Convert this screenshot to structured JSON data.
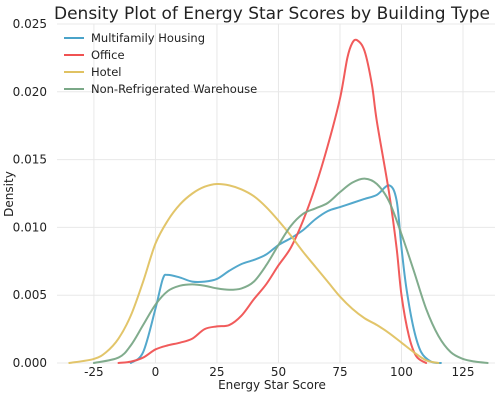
{
  "chart_data": {
    "type": "line",
    "title": "Density Plot of Energy Star Scores by Building Type",
    "xlabel": "Energy Star Score",
    "ylabel": "Density",
    "xlim": [
      -40,
      138
    ],
    "ylim": [
      0,
      0.025
    ],
    "xticks": [
      -25,
      0,
      25,
      50,
      75,
      100,
      125
    ],
    "yticks": [
      0.0,
      0.005,
      0.01,
      0.015,
      0.02,
      0.025
    ],
    "xtick_labels": [
      "-25",
      "0",
      "25",
      "50",
      "75",
      "100",
      "125"
    ],
    "ytick_labels": [
      "0.000",
      "0.005",
      "0.010",
      "0.015",
      "0.020",
      "0.025"
    ],
    "grid": true,
    "legend_position": "top-left",
    "series": [
      {
        "name": "Multifamily Housing",
        "color": "#4aa3c9",
        "x": [
          -10,
          -5,
          0,
          3,
          5,
          10,
          15,
          20,
          25,
          30,
          35,
          40,
          45,
          50,
          55,
          60,
          65,
          70,
          75,
          80,
          85,
          90,
          95,
          98,
          100,
          102,
          105,
          108,
          112,
          116
        ],
        "y": [
          0,
          0.0008,
          0.004,
          0.0062,
          0.0065,
          0.0063,
          0.006,
          0.006,
          0.0062,
          0.0068,
          0.0073,
          0.0076,
          0.008,
          0.0087,
          0.0092,
          0.0098,
          0.0106,
          0.0112,
          0.0115,
          0.0118,
          0.0121,
          0.0124,
          0.0131,
          0.012,
          0.0085,
          0.0055,
          0.0025,
          0.0008,
          0.0001,
          0
        ]
      },
      {
        "name": "Office",
        "color": "#f05252",
        "x": [
          -15,
          -10,
          -5,
          0,
          5,
          10,
          15,
          20,
          25,
          30,
          35,
          40,
          45,
          50,
          55,
          60,
          65,
          70,
          75,
          78,
          80,
          82,
          85,
          88,
          90,
          95,
          98,
          100,
          103,
          106,
          110
        ],
        "y": [
          0,
          0.0001,
          0.0004,
          0.001,
          0.0013,
          0.0015,
          0.0018,
          0.0025,
          0.0027,
          0.0028,
          0.0035,
          0.0047,
          0.0058,
          0.0072,
          0.0085,
          0.0105,
          0.013,
          0.016,
          0.0195,
          0.0225,
          0.0236,
          0.0238,
          0.023,
          0.0205,
          0.0178,
          0.0125,
          0.0085,
          0.005,
          0.002,
          0.0005,
          0
        ]
      },
      {
        "name": "Hotel",
        "color": "#e0c262",
        "x": [
          -35,
          -25,
          -20,
          -15,
          -10,
          -5,
          0,
          5,
          10,
          15,
          20,
          25,
          30,
          35,
          40,
          45,
          50,
          55,
          60,
          65,
          70,
          75,
          80,
          85,
          90,
          95,
          100,
          105,
          110,
          115
        ],
        "y": [
          0,
          0.0003,
          0.0008,
          0.0018,
          0.0035,
          0.006,
          0.0088,
          0.0105,
          0.0117,
          0.0125,
          0.013,
          0.0132,
          0.0131,
          0.0128,
          0.0123,
          0.0115,
          0.0105,
          0.0094,
          0.0082,
          0.0071,
          0.006,
          0.0049,
          0.004,
          0.0033,
          0.0028,
          0.0022,
          0.0015,
          0.0008,
          0.0002,
          0
        ]
      },
      {
        "name": "Non-Refrigerated Warehouse",
        "color": "#7aa887",
        "x": [
          -25,
          -15,
          -10,
          -5,
          0,
          5,
          10,
          15,
          20,
          25,
          30,
          35,
          40,
          45,
          50,
          55,
          60,
          65,
          70,
          75,
          80,
          85,
          90,
          95,
          100,
          105,
          110,
          115,
          120,
          125,
          130,
          135
        ],
        "y": [
          0,
          0.0004,
          0.0013,
          0.0028,
          0.0043,
          0.0053,
          0.0057,
          0.0058,
          0.0057,
          0.0055,
          0.0054,
          0.0055,
          0.006,
          0.0072,
          0.0087,
          0.0101,
          0.011,
          0.0114,
          0.0118,
          0.0126,
          0.0133,
          0.0136,
          0.0132,
          0.0119,
          0.0095,
          0.0068,
          0.004,
          0.002,
          0.0008,
          0.0003,
          0.0001,
          0
        ]
      }
    ]
  }
}
